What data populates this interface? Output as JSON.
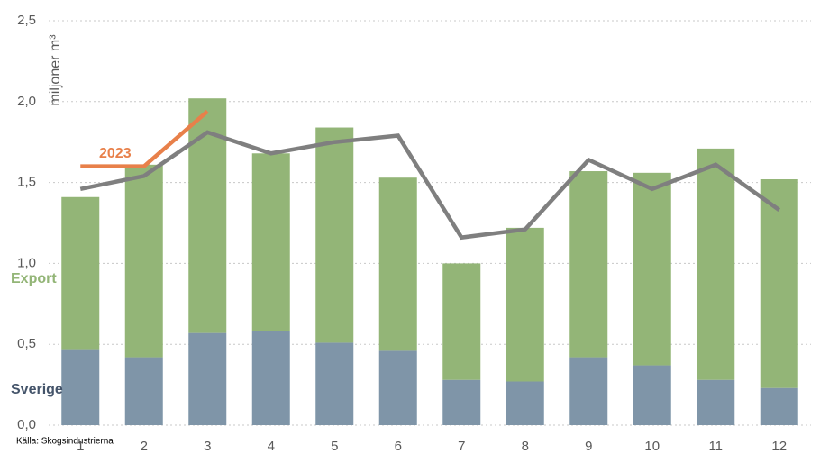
{
  "chart_data": {
    "type": "bar",
    "stacked": true,
    "y_axis_label": "miljoner m³",
    "source": "Källa: Skogsindustrierna",
    "categories": [
      "1",
      "2",
      "3",
      "4",
      "5",
      "6",
      "7",
      "8",
      "9",
      "10",
      "11",
      "12"
    ],
    "series": [
      {
        "name": "Sverige",
        "type": "bar",
        "color": "#7f95a8",
        "label_color": "#44546a",
        "values": [
          0.47,
          0.42,
          0.57,
          0.58,
          0.51,
          0.46,
          0.28,
          0.27,
          0.42,
          0.37,
          0.28,
          0.23
        ]
      },
      {
        "name": "Export",
        "type": "bar",
        "color": "#93b577",
        "label_color": "#93b577",
        "values": [
          0.94,
          1.19,
          1.45,
          1.1,
          1.33,
          1.07,
          0.72,
          0.95,
          1.15,
          1.19,
          1.43,
          1.29
        ]
      },
      {
        "type": "line",
        "color": "#7f7f7f",
        "values": [
          1.46,
          1.54,
          1.81,
          1.68,
          1.75,
          1.79,
          1.16,
          1.21,
          1.64,
          1.46,
          1.61,
          1.33
        ]
      },
      {
        "name": "2023",
        "type": "line",
        "color": "#e8804a",
        "label_color": "#e8804a",
        "values": [
          1.6,
          1.6,
          1.94,
          null,
          null,
          null,
          null,
          null,
          null,
          null,
          null,
          null
        ]
      }
    ],
    "ylim": [
      0,
      2.5
    ],
    "yticks": [
      {
        "value": 0,
        "label": "0,0"
      },
      {
        "value": 0.5,
        "label": "0,5"
      },
      {
        "value": 1,
        "label": "1,0"
      },
      {
        "value": 1.5,
        "label": "1,5"
      },
      {
        "value": 2,
        "label": "2,0"
      },
      {
        "value": 2.5,
        "label": "2,5"
      }
    ],
    "grid": true
  }
}
